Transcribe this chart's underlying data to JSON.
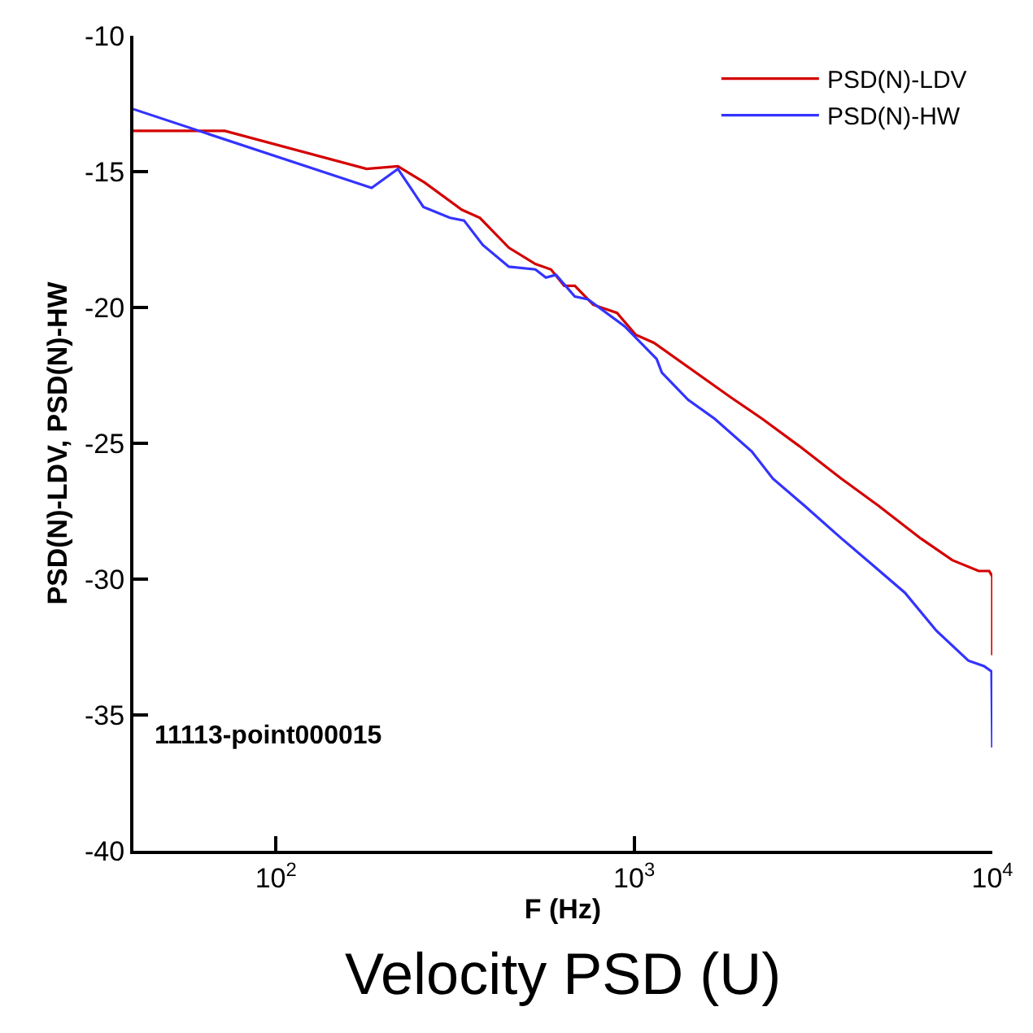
{
  "chart_data": {
    "type": "line",
    "title": "Velocity PSD (U)",
    "xlabel": "F (Hz)",
    "ylabel": "PSD(N)-LDV, PSD(N)-HW",
    "annotations": [
      "11113-point000015"
    ],
    "log": "x",
    "xlim": [
      40,
      10000
    ],
    "ylim": [
      -40,
      -10
    ],
    "xticks": [
      {
        "value": 100,
        "label": "10$^{2}$"
      },
      {
        "value": 1000,
        "label": "10$^{3}$"
      },
      {
        "value": 10000,
        "label": "10$^{4}$"
      }
    ],
    "yticks": [
      -40,
      -35,
      -30,
      -25,
      -20,
      -15,
      -10
    ],
    "legend": "top right",
    "line_style": "solid",
    "marker": "none",
    "series": [
      {
        "name": "PSD(N)-LDV",
        "color": "#d40000",
        "x": [
          40,
          72,
          179,
          219,
          260,
          330,
          371,
          447,
          530,
          586,
          638,
          683,
          769,
          896,
          1009,
          1136,
          1858,
          2280,
          2890,
          3790,
          4810,
          6310,
          7730,
          9160,
          9800,
          10000,
          10000
        ],
        "values": [
          -13.5,
          -13.5,
          -14.9,
          -14.8,
          -15.4,
          -16.4,
          -16.7,
          -17.8,
          -18.4,
          -18.6,
          -19.2,
          -19.2,
          -19.9,
          -20.2,
          -21.0,
          -21.3,
          -23.3,
          -24.1,
          -25.1,
          -26.3,
          -27.3,
          -28.5,
          -29.3,
          -29.7,
          -29.7,
          -29.9,
          -32.8
        ]
      },
      {
        "name": "PSD(N)-HW",
        "color": "#3333ff",
        "x": [
          40,
          185,
          219,
          258,
          306,
          335,
          378,
          447,
          530,
          567,
          605,
          683,
          743,
          942,
          1156,
          1195,
          1415,
          1680,
          2130,
          2440,
          2990,
          3790,
          4650,
          5700,
          6980,
          8570,
          9480,
          9950,
          10000
        ],
        "values": [
          -12.7,
          -15.6,
          -14.9,
          -16.3,
          -16.7,
          -16.8,
          -17.7,
          -18.5,
          -18.6,
          -18.9,
          -18.8,
          -19.6,
          -19.7,
          -20.7,
          -21.9,
          -22.4,
          -23.4,
          -24.1,
          -25.3,
          -26.3,
          -27.3,
          -28.5,
          -29.5,
          -30.5,
          -31.9,
          -33.0,
          -33.2,
          -33.4,
          -36.2
        ]
      }
    ]
  }
}
